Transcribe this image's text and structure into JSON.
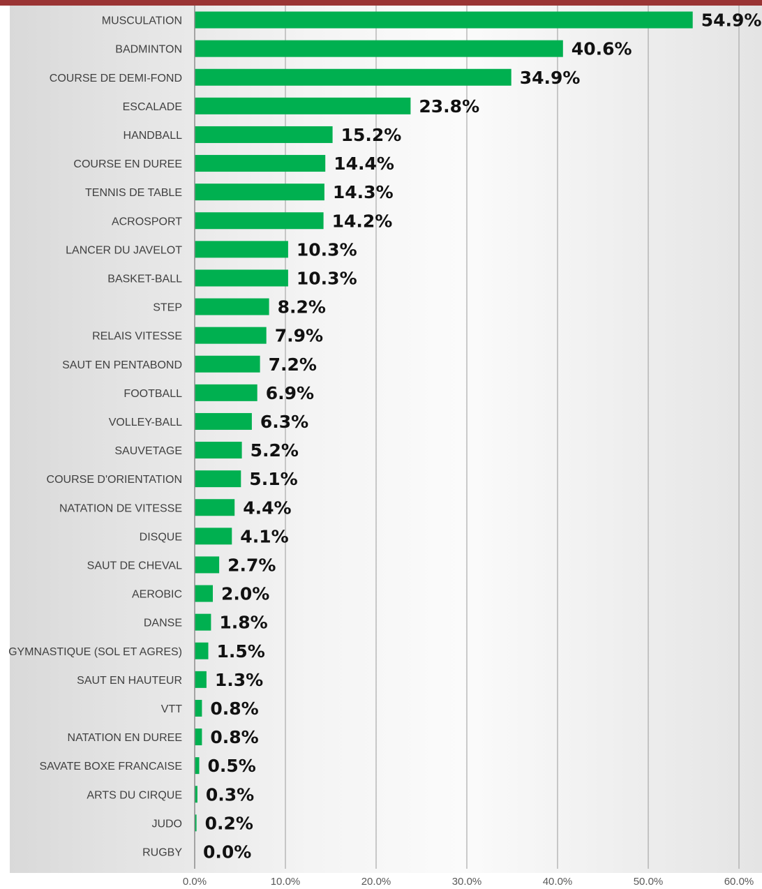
{
  "chart_data": {
    "type": "bar",
    "orientation": "horizontal",
    "categories": [
      "MUSCULATION",
      "BADMINTON",
      "COURSE DE DEMI-FOND",
      "ESCALADE",
      "HANDBALL",
      "COURSE EN DUREE",
      "TENNIS DE TABLE",
      "ACROSPORT",
      "LANCER DU JAVELOT",
      "BASKET-BALL",
      "STEP",
      "RELAIS VITESSE",
      "SAUT EN PENTABOND",
      "FOOTBALL",
      "VOLLEY-BALL",
      "SAUVETAGE",
      "COURSE D'ORIENTATION",
      "NATATION DE VITESSE",
      "DISQUE",
      "SAUT DE CHEVAL",
      "AEROBIC",
      "DANSE",
      "GYMNASTIQUE (SOL ET AGRES)",
      "SAUT EN HAUTEUR",
      "VTT",
      "NATATION EN DUREE",
      "SAVATE BOXE FRANCAISE",
      "ARTS DU CIRQUE",
      "JUDO",
      "RUGBY"
    ],
    "values": [
      54.9,
      40.6,
      34.9,
      23.8,
      15.2,
      14.4,
      14.3,
      14.2,
      10.3,
      10.3,
      8.2,
      7.9,
      7.2,
      6.9,
      6.3,
      5.2,
      5.1,
      4.4,
      4.1,
      2.7,
      2.0,
      1.8,
      1.5,
      1.3,
      0.8,
      0.8,
      0.5,
      0.3,
      0.2,
      0.0
    ],
    "value_labels": [
      "54.9%",
      "40.6%",
      "34.9%",
      "23.8%",
      "15.2%",
      "14.4%",
      "14.3%",
      "14.2%",
      "10.3%",
      "10.3%",
      "8.2%",
      "7.9%",
      "7.2%",
      "6.9%",
      "6.3%",
      "5.2%",
      "5.1%",
      "4.4%",
      "4.1%",
      "2.7%",
      "2.0%",
      "1.8%",
      "1.5%",
      "1.3%",
      "0.8%",
      "0.8%",
      "0.5%",
      "0.3%",
      "0.2%",
      "0.0%"
    ],
    "x_ticks": [
      "0.0%",
      "10.0%",
      "20.0%",
      "30.0%",
      "40.0%",
      "50.0%",
      "60.0%"
    ],
    "xlim": [
      0,
      60
    ],
    "grid": "vertical",
    "bar_color": "#00b050",
    "title_bar_color": "#9a3434"
  }
}
